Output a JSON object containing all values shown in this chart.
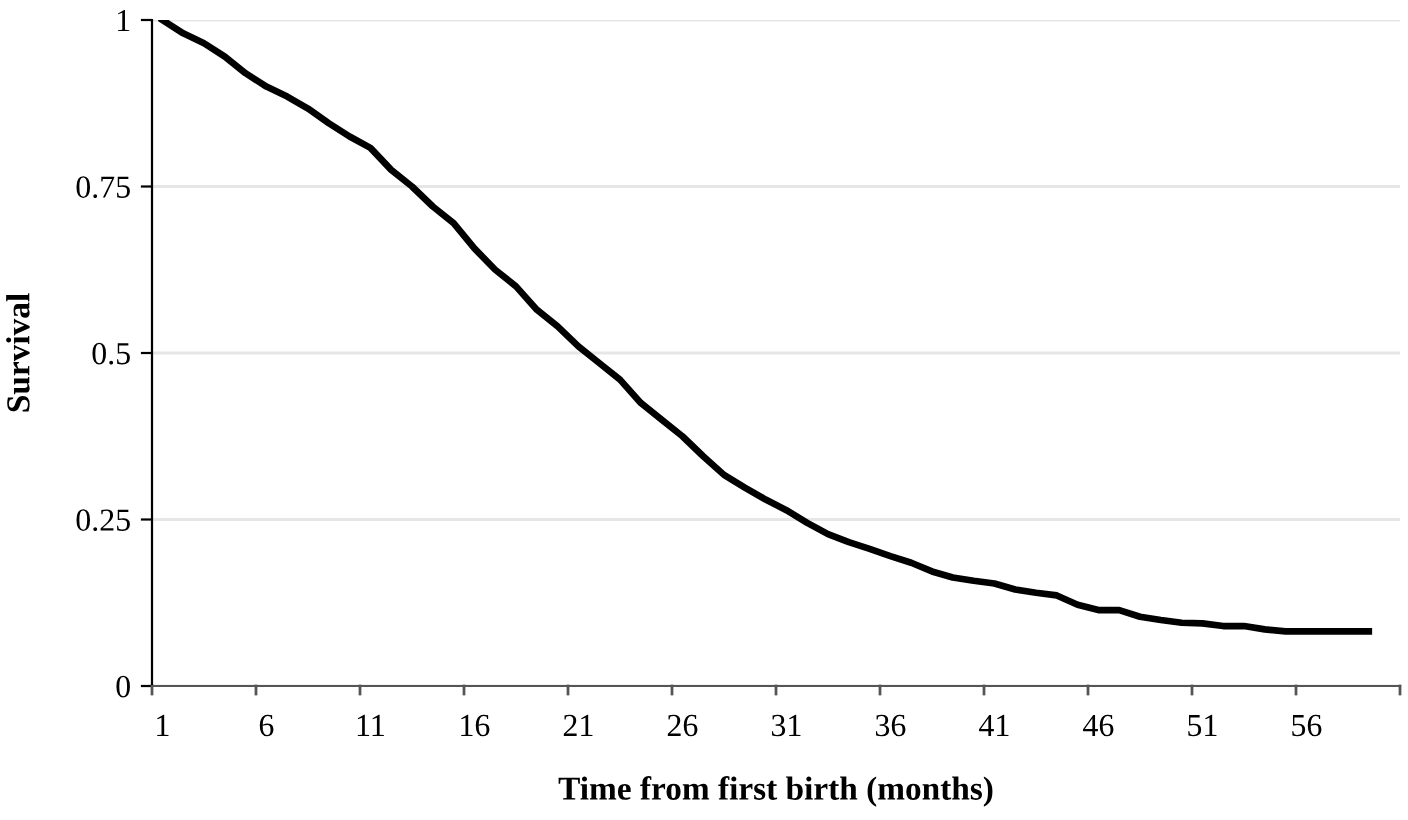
{
  "chart_data": {
    "type": "line",
    "xlabel": "Time from first birth (months)",
    "ylabel": "Survival",
    "categories": [
      "1",
      null,
      null,
      null,
      null,
      "6",
      null,
      null,
      null,
      null,
      "11",
      null,
      null,
      null,
      null,
      "16",
      null,
      null,
      null,
      null,
      "21",
      null,
      null,
      null,
      null,
      "26",
      null,
      null,
      null,
      null,
      "31",
      null,
      null,
      null,
      null,
      "36",
      null,
      null,
      null,
      null,
      "41",
      null,
      null,
      null,
      null,
      "46",
      null,
      null,
      null,
      null,
      "51",
      null,
      null,
      null,
      null,
      "56",
      null,
      null,
      null,
      null
    ],
    "series": [
      {
        "color": "#000000",
        "values": [
          1.0,
          0.98,
          0.965,
          0.945,
          0.92,
          0.9,
          0.885,
          0.867,
          0.845,
          0.825,
          0.808,
          0.775,
          0.75,
          0.72,
          0.695,
          0.657,
          0.625,
          0.6,
          0.565,
          0.54,
          0.51,
          0.485,
          0.46,
          0.425,
          0.4,
          0.375,
          0.345,
          0.317,
          0.298,
          0.28,
          0.264,
          0.245,
          0.228,
          0.216,
          0.206,
          0.195,
          0.185,
          0.172,
          0.163,
          0.158,
          0.154,
          0.145,
          0.14,
          0.136,
          0.122,
          0.114,
          0.114,
          0.104,
          0.099,
          0.095,
          0.094,
          0.09,
          0.09,
          0.085,
          0.082,
          0.082,
          0.082,
          0.082,
          0.082,
          null
        ]
      }
    ],
    "ylim": [
      0,
      1
    ],
    "yticks": [
      0,
      0.25,
      0.5,
      0.75,
      1
    ],
    "grid": "y",
    "legend": false,
    "marker": "none",
    "line_style": "solid"
  }
}
